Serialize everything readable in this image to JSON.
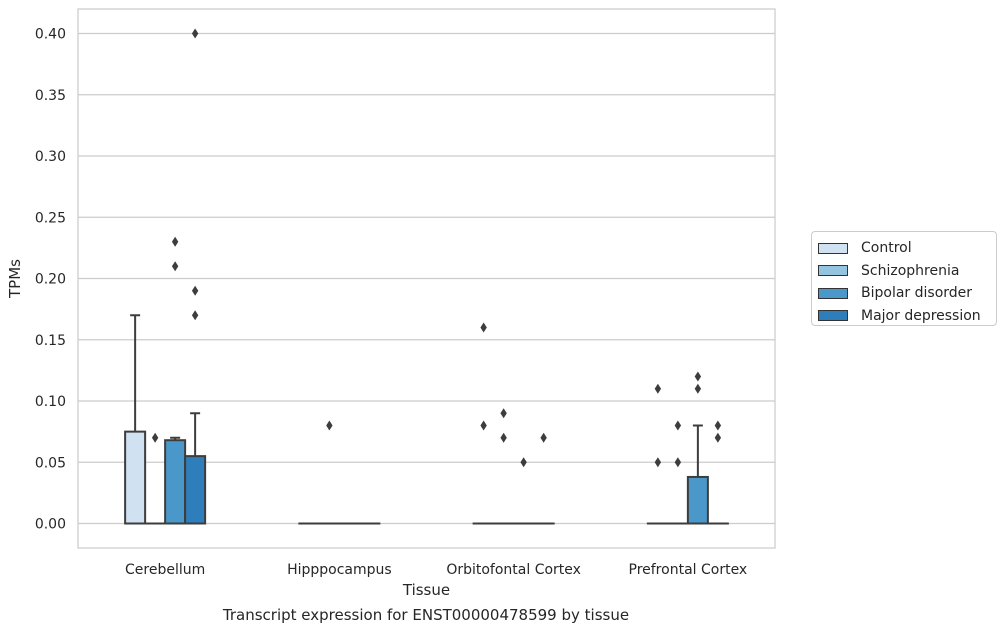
{
  "caption": "Transcript expression for ENST00000478599 by tissue",
  "chart_data": {
    "type": "box",
    "xlabel": "Tissue",
    "ylabel": "TPMs",
    "ylim": [
      -0.02,
      0.42
    ],
    "yticks": [
      0.0,
      0.05,
      0.1,
      0.15,
      0.2,
      0.25,
      0.3,
      0.35,
      0.4
    ],
    "ytick_labels": [
      "0.00",
      "0.05",
      "0.10",
      "0.15",
      "0.20",
      "0.25",
      "0.30",
      "0.35",
      "0.40"
    ],
    "grid": "horizontal",
    "legend_position": "right",
    "categories": [
      "Cerebellum",
      "Hipppocampus",
      "Orbitofontal Cortex",
      "Prefrontal Cortex"
    ],
    "series": [
      {
        "name": "Control",
        "color": "#d0e1f2",
        "boxes": [
          {
            "q1": 0.0,
            "median": 0.0,
            "q3": 0.075,
            "whisker_low": 0.0,
            "whisker_high": 0.17,
            "outliers": []
          },
          {
            "q1": 0.0,
            "median": 0.0,
            "q3": 0.0,
            "whisker_low": 0.0,
            "whisker_high": 0.0,
            "outliers": []
          },
          {
            "q1": 0.0,
            "median": 0.0,
            "q3": 0.0,
            "whisker_low": 0.0,
            "whisker_high": 0.0,
            "outliers": [
              0.16,
              0.08
            ]
          },
          {
            "q1": 0.0,
            "median": 0.0,
            "q3": 0.0,
            "whisker_low": 0.0,
            "whisker_high": 0.0,
            "outliers": [
              0.11,
              0.05
            ]
          }
        ]
      },
      {
        "name": "Schizophrenia",
        "color": "#94c4df",
        "boxes": [
          {
            "q1": 0.0,
            "median": 0.0,
            "q3": 0.0,
            "whisker_low": 0.0,
            "whisker_high": 0.0,
            "outliers": [
              0.07
            ]
          },
          {
            "q1": 0.0,
            "median": 0.0,
            "q3": 0.0,
            "whisker_low": 0.0,
            "whisker_high": 0.0,
            "outliers": [
              0.08
            ]
          },
          {
            "q1": 0.0,
            "median": 0.0,
            "q3": 0.0,
            "whisker_low": 0.0,
            "whisker_high": 0.0,
            "outliers": [
              0.09,
              0.07
            ]
          },
          {
            "q1": 0.0,
            "median": 0.0,
            "q3": 0.0,
            "whisker_low": 0.0,
            "whisker_high": 0.0,
            "outliers": [
              0.08,
              0.05
            ]
          }
        ]
      },
      {
        "name": "Bipolar disorder",
        "color": "#4a98c9",
        "boxes": [
          {
            "q1": 0.0,
            "median": 0.0,
            "q3": 0.068,
            "whisker_low": 0.0,
            "whisker_high": 0.07,
            "outliers": [
              0.23,
              0.21
            ]
          },
          {
            "q1": 0.0,
            "median": 0.0,
            "q3": 0.0,
            "whisker_low": 0.0,
            "whisker_high": 0.0,
            "outliers": []
          },
          {
            "q1": 0.0,
            "median": 0.0,
            "q3": 0.0,
            "whisker_low": 0.0,
            "whisker_high": 0.0,
            "outliers": [
              0.05
            ]
          },
          {
            "q1": 0.0,
            "median": 0.0,
            "q3": 0.038,
            "whisker_low": 0.0,
            "whisker_high": 0.08,
            "outliers": [
              0.12,
              0.11
            ]
          }
        ]
      },
      {
        "name": "Major depression",
        "color": "#2e7ebc",
        "boxes": [
          {
            "q1": 0.0,
            "median": 0.0,
            "q3": 0.055,
            "whisker_low": 0.0,
            "whisker_high": 0.09,
            "outliers": [
              0.4,
              0.19,
              0.17
            ]
          },
          {
            "q1": 0.0,
            "median": 0.0,
            "q3": 0.0,
            "whisker_low": 0.0,
            "whisker_high": 0.0,
            "outliers": []
          },
          {
            "q1": 0.0,
            "median": 0.0,
            "q3": 0.0,
            "whisker_low": 0.0,
            "whisker_high": 0.0,
            "outliers": [
              0.07
            ]
          },
          {
            "q1": 0.0,
            "median": 0.0,
            "q3": 0.0,
            "whisker_low": 0.0,
            "whisker_high": 0.0,
            "outliers": [
              0.08,
              0.07
            ]
          }
        ]
      }
    ]
  }
}
